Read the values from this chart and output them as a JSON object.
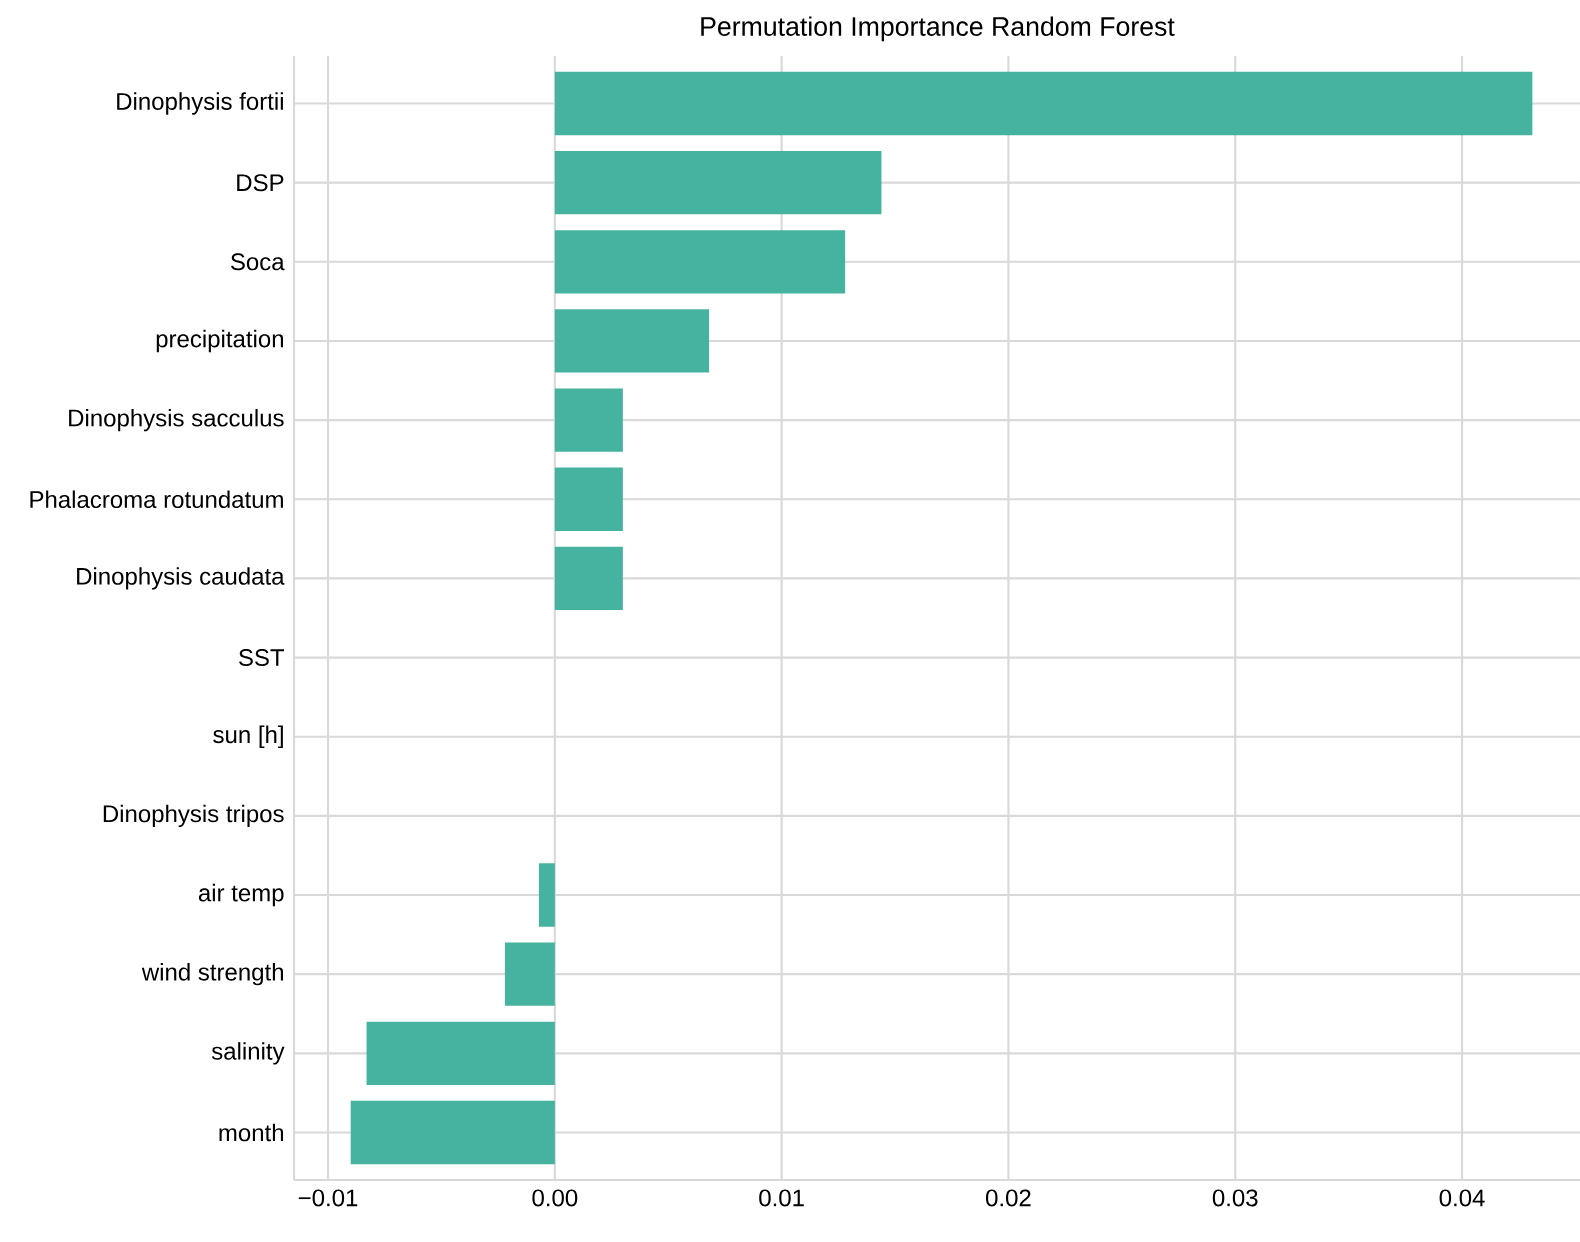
{
  "chart_data": {
    "type": "bar",
    "orientation": "horizontal",
    "title": "Permutation Importance Random Forest",
    "categories": [
      "Dinophysis fortii",
      "DSP",
      "Soca",
      "precipitation",
      "Dinophysis sacculus",
      "Phalacroma rotundatum",
      "Dinophysis caudata",
      "SST",
      "sun [h]",
      "Dinophysis tripos",
      "air temp",
      "wind strength",
      "salinity",
      "month"
    ],
    "values": [
      0.0431,
      0.0144,
      0.0128,
      0.0068,
      0.003,
      0.003,
      0.003,
      0,
      0,
      0,
      -0.0007,
      -0.0022,
      -0.0083,
      -0.009
    ],
    "color": "#46b3a0",
    "xlim": [
      -0.0115,
      0.0452
    ],
    "xticks": [
      {
        "value": -0.01,
        "label": "−0.01"
      },
      {
        "value": 0,
        "label": "0.00"
      },
      {
        "value": 0.01,
        "label": "0.01"
      },
      {
        "value": 0.02,
        "label": "0.02"
      },
      {
        "value": 0.03,
        "label": "0.03"
      },
      {
        "value": 0.04,
        "label": "0.04"
      }
    ],
    "grid": true
  }
}
